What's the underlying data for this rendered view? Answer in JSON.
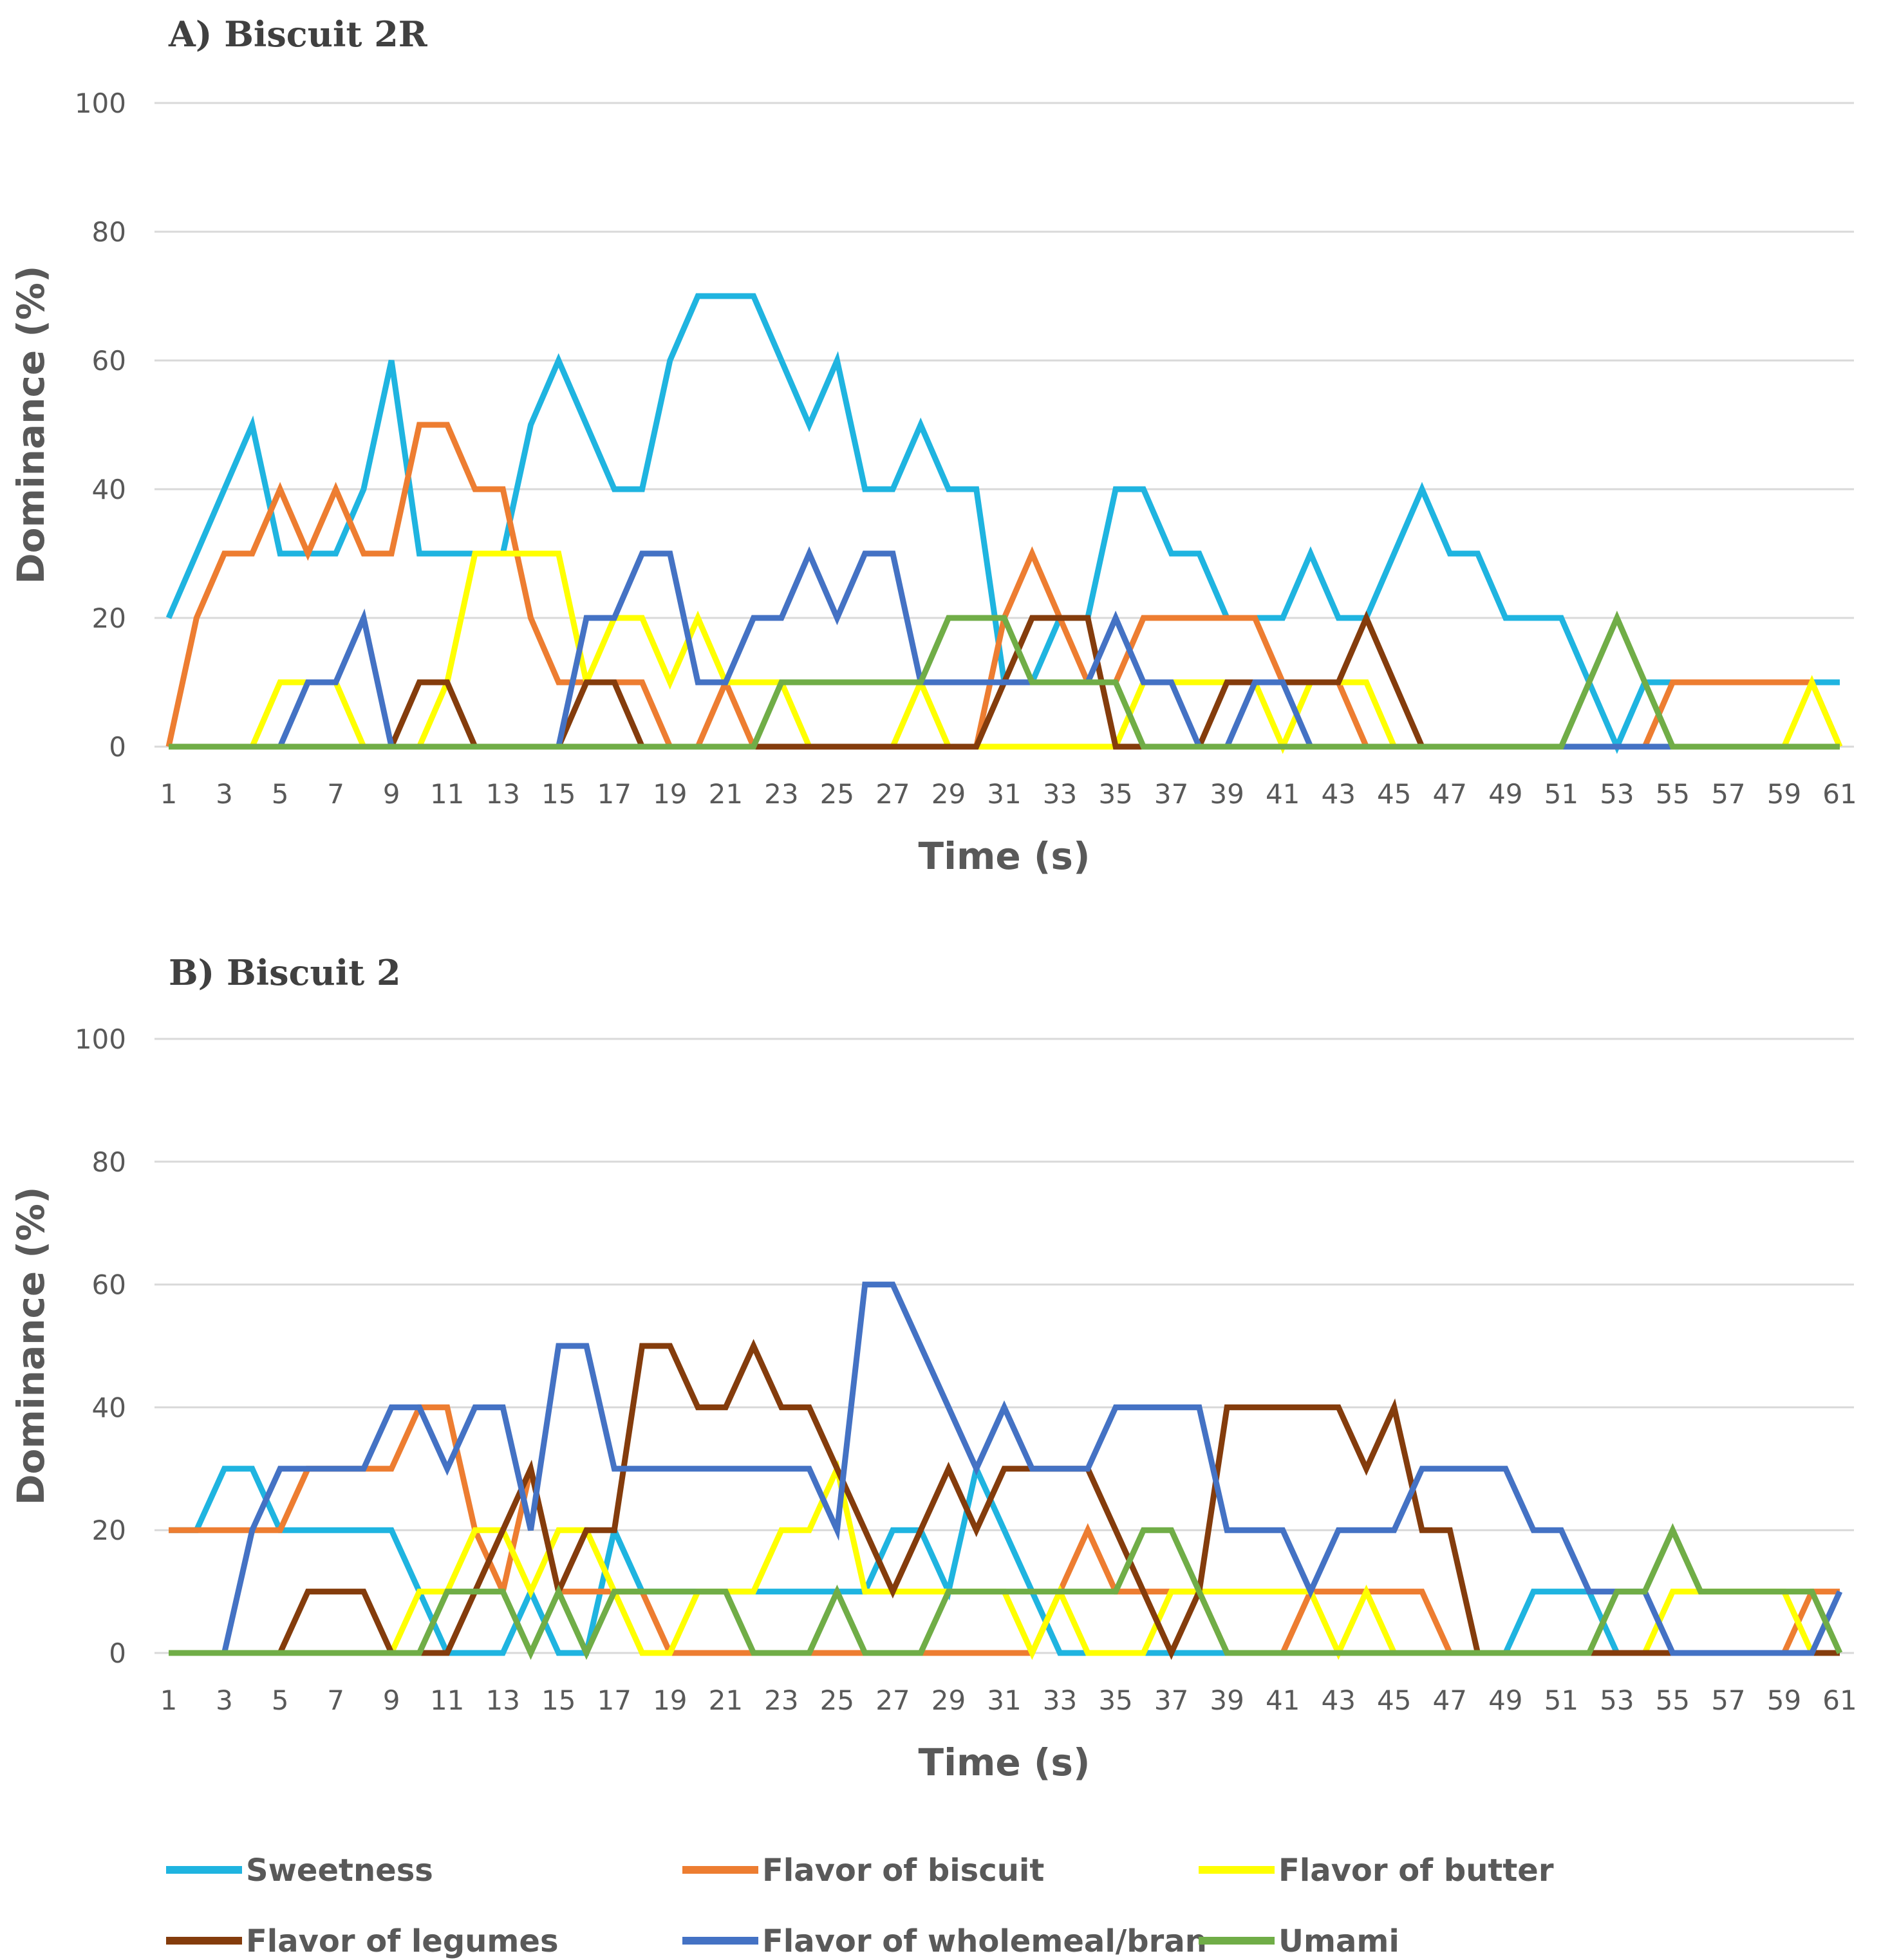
{
  "chart_data": [
    {
      "type": "line",
      "title": "A) Biscuit 2R",
      "xlabel": "Time (s)",
      "ylabel": "Dominance (%)",
      "ylim": [
        0,
        100
      ],
      "yticks": [
        "0",
        "20",
        "40",
        "60",
        "80",
        "100"
      ],
      "xticks": [
        "1",
        "3",
        "5",
        "7",
        "9",
        "11",
        "13",
        "15",
        "17",
        "19",
        "21",
        "23",
        "25",
        "27",
        "29",
        "31",
        "33",
        "35",
        "37",
        "39",
        "41",
        "43",
        "45",
        "47",
        "49",
        "51",
        "53",
        "55",
        "57",
        "59",
        "61"
      ],
      "x_start": 1,
      "x_end": 61,
      "series": [
        {
          "name": "Sweetness",
          "color": "#1fb4e0",
          "values": [
            20,
            30,
            40,
            50,
            30,
            30,
            30,
            40,
            60,
            30,
            30,
            30,
            30,
            50,
            60,
            50,
            40,
            40,
            60,
            70,
            70,
            70,
            60,
            50,
            60,
            40,
            40,
            50,
            40,
            40,
            10,
            10,
            20,
            20,
            40,
            40,
            30,
            30,
            20,
            20,
            20,
            30,
            20,
            20,
            30,
            40,
            30,
            30,
            20,
            20,
            20,
            10,
            0,
            10,
            10,
            10,
            10,
            10,
            10,
            10,
            10
          ]
        },
        {
          "name": "Flavor of biscuit",
          "color": "#ed7d31",
          "values": [
            0,
            20,
            30,
            30,
            40,
            30,
            40,
            30,
            30,
            50,
            50,
            40,
            40,
            20,
            10,
            10,
            10,
            10,
            0,
            0,
            10,
            0,
            0,
            0,
            0,
            0,
            0,
            0,
            0,
            0,
            20,
            30,
            20,
            10,
            10,
            20,
            20,
            20,
            20,
            20,
            10,
            10,
            10,
            0,
            0,
            0,
            0,
            0,
            0,
            0,
            0,
            0,
            0,
            0,
            10,
            10,
            10,
            10,
            10,
            10,
            0
          ]
        },
        {
          "name": "Flavor of butter",
          "color": "#ffff00",
          "values": [
            0,
            0,
            0,
            0,
            10,
            10,
            10,
            0,
            0,
            0,
            10,
            30,
            30,
            30,
            30,
            10,
            20,
            20,
            10,
            20,
            10,
            10,
            10,
            0,
            0,
            0,
            0,
            10,
            0,
            0,
            0,
            0,
            0,
            0,
            0,
            10,
            10,
            10,
            10,
            10,
            0,
            10,
            10,
            10,
            0,
            0,
            0,
            0,
            0,
            0,
            0,
            0,
            0,
            0,
            0,
            0,
            0,
            0,
            0,
            10,
            0
          ]
        },
        {
          "name": "Flavor of legumes",
          "color": "#843c0c",
          "values": [
            0,
            0,
            0,
            0,
            0,
            0,
            0,
            0,
            0,
            10,
            10,
            0,
            0,
            0,
            0,
            10,
            10,
            0,
            0,
            0,
            0,
            0,
            0,
            0,
            0,
            0,
            0,
            0,
            0,
            0,
            10,
            20,
            20,
            20,
            0,
            0,
            0,
            0,
            10,
            10,
            10,
            10,
            10,
            20,
            10,
            0,
            0,
            0,
            0,
            0,
            0,
            0,
            0,
            0,
            0,
            0,
            0,
            0,
            0,
            0,
            0
          ]
        },
        {
          "name": "Flavor of wholemeal/bran",
          "color": "#4472c4",
          "values": [
            0,
            0,
            0,
            0,
            0,
            10,
            10,
            20,
            0,
            0,
            0,
            0,
            0,
            0,
            0,
            20,
            20,
            30,
            30,
            10,
            10,
            20,
            20,
            30,
            20,
            30,
            30,
            10,
            10,
            10,
            10,
            10,
            10,
            10,
            20,
            10,
            10,
            0,
            0,
            10,
            10,
            0,
            0,
            0,
            0,
            0,
            0,
            0,
            0,
            0,
            0,
            0,
            0,
            0,
            0,
            0,
            0,
            0,
            0,
            0,
            0
          ]
        },
        {
          "name": "Umami",
          "color": "#70ad47",
          "values": [
            0,
            0,
            0,
            0,
            0,
            0,
            0,
            0,
            0,
            0,
            0,
            0,
            0,
            0,
            0,
            0,
            0,
            0,
            0,
            0,
            0,
            0,
            10,
            10,
            10,
            10,
            10,
            10,
            20,
            20,
            20,
            10,
            10,
            10,
            10,
            0,
            0,
            0,
            0,
            0,
            0,
            0,
            0,
            0,
            0,
            0,
            0,
            0,
            0,
            0,
            0,
            10,
            20,
            10,
            0,
            0,
            0,
            0,
            0,
            0,
            0
          ]
        }
      ]
    },
    {
      "type": "line",
      "title": "B) Biscuit 2",
      "xlabel": "Time (s)",
      "ylabel": "Dominance (%)",
      "ylim": [
        0,
        100
      ],
      "yticks": [
        "0",
        "20",
        "40",
        "60",
        "80",
        "100"
      ],
      "xticks": [
        "1",
        "3",
        "5",
        "7",
        "9",
        "11",
        "13",
        "15",
        "17",
        "19",
        "21",
        "23",
        "25",
        "27",
        "29",
        "31",
        "33",
        "35",
        "37",
        "39",
        "41",
        "43",
        "45",
        "47",
        "49",
        "51",
        "53",
        "55",
        "57",
        "59",
        "61"
      ],
      "x_start": 1,
      "x_end": 61,
      "series": [
        {
          "name": "Sweetness",
          "color": "#1fb4e0",
          "values": [
            20,
            20,
            30,
            30,
            20,
            20,
            20,
            20,
            20,
            10,
            0,
            0,
            0,
            10,
            0,
            0,
            20,
            10,
            10,
            10,
            10,
            10,
            10,
            10,
            10,
            10,
            20,
            20,
            10,
            30,
            20,
            10,
            0,
            0,
            0,
            0,
            0,
            0,
            0,
            0,
            0,
            0,
            0,
            0,
            0,
            0,
            0,
            0,
            0,
            10,
            10,
            10,
            0,
            0,
            0,
            0,
            0,
            0,
            0,
            0,
            0
          ]
        },
        {
          "name": "Flavor of biscuit",
          "color": "#ed7d31",
          "values": [
            20,
            20,
            20,
            20,
            20,
            30,
            30,
            30,
            30,
            40,
            40,
            20,
            10,
            30,
            10,
            10,
            10,
            10,
            0,
            0,
            0,
            0,
            0,
            0,
            0,
            0,
            0,
            0,
            0,
            0,
            0,
            0,
            10,
            20,
            10,
            10,
            10,
            10,
            0,
            0,
            0,
            10,
            10,
            10,
            10,
            10,
            0,
            0,
            0,
            0,
            0,
            0,
            0,
            0,
            0,
            0,
            0,
            0,
            0,
            10,
            10
          ]
        },
        {
          "name": "Flavor of butter",
          "color": "#ffff00",
          "values": [
            0,
            0,
            0,
            0,
            0,
            0,
            0,
            0,
            0,
            10,
            10,
            20,
            20,
            10,
            20,
            20,
            10,
            0,
            0,
            10,
            10,
            10,
            20,
            20,
            30,
            10,
            10,
            10,
            10,
            10,
            10,
            0,
            10,
            0,
            0,
            0,
            10,
            10,
            10,
            10,
            10,
            10,
            0,
            10,
            0,
            0,
            0,
            0,
            0,
            0,
            0,
            0,
            0,
            0,
            10,
            10,
            10,
            10,
            10,
            0,
            0
          ]
        },
        {
          "name": "Flavor of legumes",
          "color": "#843c0c",
          "values": [
            0,
            0,
            0,
            0,
            0,
            10,
            10,
            10,
            0,
            0,
            0,
            10,
            20,
            30,
            10,
            20,
            20,
            50,
            50,
            40,
            40,
            50,
            40,
            40,
            30,
            20,
            10,
            20,
            30,
            20,
            30,
            30,
            30,
            30,
            20,
            10,
            0,
            10,
            40,
            40,
            40,
            40,
            40,
            30,
            40,
            20,
            20,
            0,
            0,
            0,
            0,
            0,
            0,
            0,
            0,
            0,
            0,
            0,
            0,
            0,
            0
          ]
        },
        {
          "name": "Flavor of wholemeal/bran",
          "color": "#4472c4",
          "values": [
            0,
            0,
            0,
            20,
            30,
            30,
            30,
            30,
            40,
            40,
            30,
            40,
            40,
            20,
            50,
            50,
            30,
            30,
            30,
            30,
            30,
            30,
            30,
            30,
            20,
            60,
            60,
            50,
            40,
            30,
            40,
            30,
            30,
            30,
            40,
            40,
            40,
            40,
            20,
            20,
            20,
            10,
            20,
            20,
            20,
            30,
            30,
            30,
            30,
            20,
            20,
            10,
            10,
            10,
            0,
            0,
            0,
            0,
            0,
            0,
            10
          ]
        },
        {
          "name": "Umami",
          "color": "#70ad47",
          "values": [
            0,
            0,
            0,
            0,
            0,
            0,
            0,
            0,
            0,
            0,
            10,
            10,
            10,
            0,
            10,
            0,
            10,
            10,
            10,
            10,
            10,
            0,
            0,
            0,
            10,
            0,
            0,
            0,
            10,
            10,
            10,
            10,
            10,
            10,
            10,
            20,
            20,
            10,
            0,
            0,
            0,
            0,
            0,
            0,
            0,
            0,
            0,
            0,
            0,
            0,
            0,
            0,
            10,
            10,
            20,
            10,
            10,
            10,
            10,
            10,
            0
          ]
        }
      ]
    }
  ],
  "legend": [
    {
      "name": "Sweetness",
      "color": "#1fb4e0"
    },
    {
      "name": "Flavor of biscuit",
      "color": "#ed7d31"
    },
    {
      "name": "Flavor of butter",
      "color": "#ffff00"
    },
    {
      "name": "Flavor of legumes",
      "color": "#843c0c"
    },
    {
      "name": "Flavor of wholemeal/bran",
      "color": "#4472c4"
    },
    {
      "name": "Umami",
      "color": "#70ad47"
    }
  ]
}
